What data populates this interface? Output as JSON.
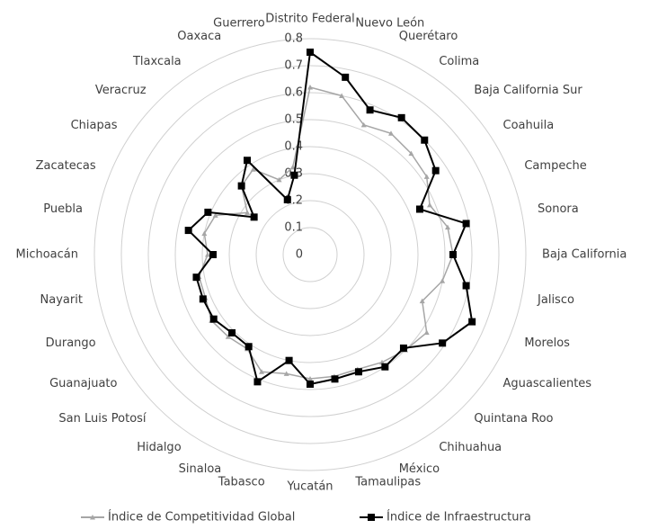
{
  "chart_data": {
    "type": "radar",
    "categories": [
      "Distrito Federal",
      "Nuevo León",
      "Querétaro",
      "Colima",
      "Baja California Sur",
      "Coahuila",
      "Campeche",
      "Sonora",
      "Baja California",
      "Jalisco",
      "Morelos",
      "Aguascalientes",
      "Quintana Roo",
      "Chihuahua",
      "México",
      "Tamaulipas",
      "Yucatán",
      "Tabasco",
      "Sinaloa",
      "Hidalgo",
      "San Luis Potosí",
      "Guanajuato",
      "Durango",
      "Nayarit",
      "Michoacán",
      "Puebla",
      "Zacatecas",
      "Chiapas",
      "Veracruz",
      "Tlaxcala",
      "Oaxaca",
      "Guerrero"
    ],
    "series": [
      {
        "name": "Índice de Competitividad Global",
        "color": "#a6a6a6",
        "values": [
          0.62,
          0.6,
          0.52,
          0.54,
          0.53,
          0.52,
          0.48,
          0.52,
          0.53,
          0.5,
          0.45,
          0.52,
          0.5,
          0.48,
          0.46,
          0.46,
          0.46,
          0.45,
          0.47,
          0.42,
          0.43,
          0.44,
          0.42,
          0.42,
          0.38,
          0.4,
          0.38,
          0.28,
          0.36,
          0.38,
          0.3,
          0.33
        ]
      },
      {
        "name": "Índice de Infraestructura",
        "color": "#000000",
        "values": [
          0.75,
          0.67,
          0.58,
          0.61,
          0.6,
          0.56,
          0.44,
          0.59,
          0.53,
          0.59,
          0.65,
          0.59,
          0.49,
          0.5,
          0.47,
          0.47,
          0.48,
          0.4,
          0.51,
          0.41,
          0.41,
          0.43,
          0.43,
          0.43,
          0.36,
          0.46,
          0.41,
          0.25,
          0.36,
          0.42,
          0.22,
          0.3
        ]
      }
    ],
    "rlim": [
      0,
      0.8
    ],
    "rticks": [
      0,
      0.1,
      0.2,
      0.3,
      0.4,
      0.5,
      0.6,
      0.7,
      0.8
    ],
    "grid": true
  }
}
